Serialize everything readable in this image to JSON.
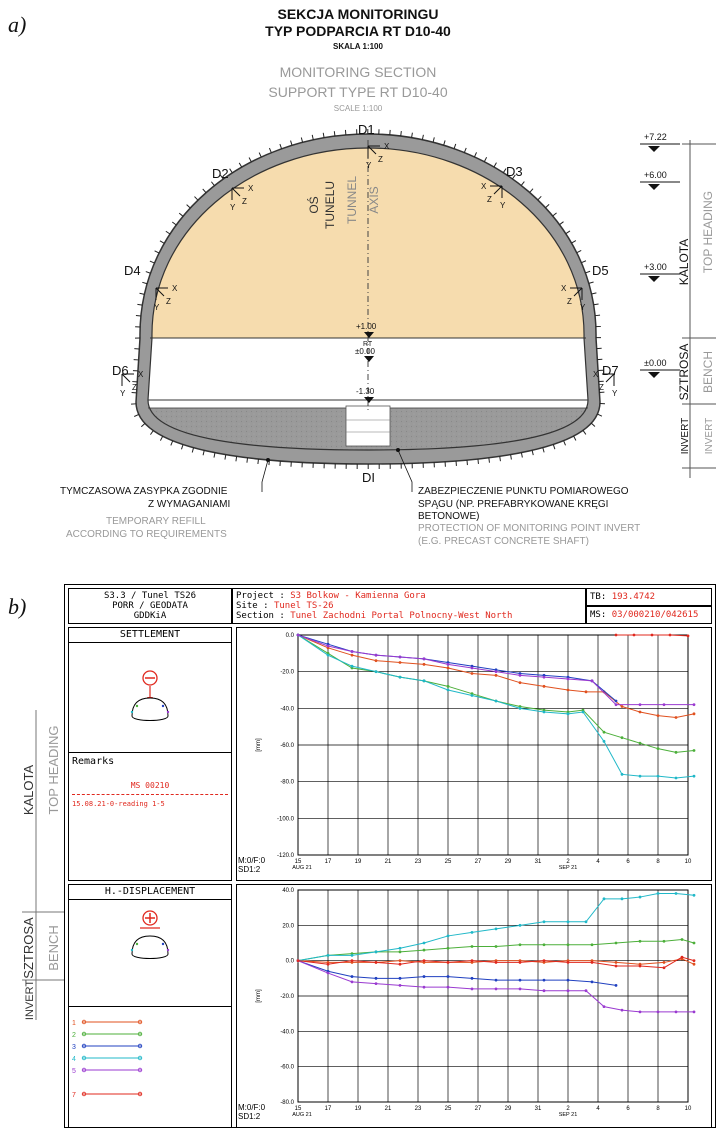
{
  "panel_a": {
    "label": "a)",
    "title_pl_1": "SEKCJA MONITORINGU",
    "title_pl_2": "TYP PODPARCIA RT D10-40",
    "scale_pl": "SKALA 1:100",
    "title_en_1": "MONITORING SECTION",
    "title_en_2": "SUPPORT  TYPE RT D10-40",
    "scale_en": "SCALE 1:100",
    "points": [
      "D1",
      "D2",
      "D3",
      "D4",
      "D5",
      "D6",
      "D7",
      "DI"
    ],
    "axis_pl_1": "OŚ",
    "axis_pl_2": "TUNELU",
    "axis_en_1": "TUNNEL",
    "axis_en_2": "AXIS",
    "levels": [
      "+7.22",
      "+6.00",
      "+3.00",
      "±0.00",
      "+1.00",
      "RT",
      "±0.00",
      "-1.30"
    ],
    "zones": {
      "kalota": "KALOTA",
      "top_heading": "TOP HEADING",
      "sztrosa": "SZTROSA",
      "bench": "BENCH",
      "invert": "INVERT",
      "invert_en": "INVERT"
    },
    "refill_pl_1": "TYMCZASOWA ZASYPKA ZGODNIE",
    "refill_pl_2": "Z WYMAGANIAMI",
    "refill_en_1": "TEMPORARY REFILL",
    "refill_en_2": "ACCORDING TO REQUIREMENTS",
    "protect_pl_1": "ZABEZPIECZENIE PUNKTU POMIAROWEGO",
    "protect_pl_2": "SPĄGU (NP. PREFABRYKOWANE KRĘGI",
    "protect_pl_3": "BETONOWE)",
    "protect_en_1": "PROTECTION OF MONITORING POINT INVERT",
    "protect_en_2": "(E.G. PRECAST CONCRETE SHAFT)",
    "coord_labels": {
      "x": "X",
      "y": "Y",
      "z": "Z"
    }
  },
  "panel_b": {
    "label": "b)",
    "header": {
      "left_1": "S3.3  / Tunel TS26",
      "left_2": "PORR / GEODATA",
      "left_3": "GDDKiA",
      "project_key": "Project   :",
      "project_val": "S3 Bolkow - Kamienna Gora",
      "site_key": "Site      :",
      "site_val": "Tunel TS-26",
      "section_key": "Section   :",
      "section_val": "Tunel Zachodni Portal Polnocny-West North",
      "tb_key": "TB:",
      "tb_val": "193.4742",
      "ms_key": "MS:",
      "ms_val": "03/000210/042615"
    },
    "settlement_title": "SETTLEMENT",
    "remarks_title": "Remarks",
    "remarks_ms": "MS 00210",
    "remarks_note": "15.08.21-0-reading 1-5",
    "hdisp_title": "H.-DISPLACEMENT",
    "mf_label": "M:0/F:0",
    "sd_label": "SD1:2",
    "legend": [
      {
        "num": "1",
        "color": "#e0501e"
      },
      {
        "num": "2",
        "color": "#4caf3a"
      },
      {
        "num": "3",
        "color": "#2040c0"
      },
      {
        "num": "4",
        "color": "#20b8c8"
      },
      {
        "num": "5",
        "color": "#9a3ad0"
      },
      {
        "num": "7",
        "color": "#e0281e"
      }
    ],
    "side_labels": {
      "kalota": "KALOTA",
      "top_heading": "TOP HEADING",
      "sztrosa": "SZTROSA",
      "bench": "BENCH",
      "invert": "INVERT"
    }
  },
  "chart_data": [
    {
      "type": "line",
      "ylabel": "[mm]",
      "ylim": [
        -120,
        0
      ],
      "yticks": [
        "0.0",
        "-20.0",
        "-40.0",
        "-60.0",
        "-80.0",
        "-100.0",
        "-120.0"
      ],
      "xticks": [
        "15",
        "17",
        "19",
        "21",
        "23",
        "25",
        "27",
        "29",
        "31",
        "2",
        "4",
        "6",
        "8",
        "10"
      ],
      "xmonths": [
        {
          "at": 0,
          "label": "AUG 21"
        },
        {
          "at": 9,
          "label": "SEP 21"
        }
      ],
      "grid": true,
      "series": [
        {
          "color": "#e0501e",
          "x": [
            0,
            1,
            1.8,
            2.6,
            3.4,
            4.2,
            5,
            5.8,
            6.6,
            7.4,
            8.2,
            9,
            9.6,
            10.2,
            10.8,
            11.4,
            12,
            12.6,
            13.2
          ],
          "y": [
            0,
            -7,
            -11,
            -14,
            -15,
            -16,
            -18,
            -21,
            -22,
            -26,
            -28,
            -30,
            -31,
            -31,
            -39,
            -42,
            -44,
            -45,
            -43
          ]
        },
        {
          "color": "#4caf3a",
          "x": [
            0,
            1,
            1.8,
            2.6,
            3.4,
            4.2,
            5,
            5.8,
            6.6,
            7.4,
            8.2,
            9,
            9.5,
            10.2,
            10.8,
            11.4,
            12,
            12.6,
            13.2
          ],
          "y": [
            0,
            -10,
            -18,
            -20,
            -23,
            -25,
            -28,
            -32,
            -36,
            -39,
            -41,
            -42,
            -41,
            -53,
            -56,
            -59,
            -62,
            -64,
            -63
          ]
        },
        {
          "color": "#2040c0",
          "x": [
            0,
            1,
            1.8,
            2.6,
            3.4,
            4.2,
            5,
            5.8,
            6.6,
            7.4,
            8.2,
            9,
            9.8,
            10.6
          ],
          "y": [
            0,
            -5,
            -9,
            -11,
            -12,
            -13,
            -15,
            -17,
            -19,
            -21,
            -22,
            -23,
            -25,
            -36
          ]
        },
        {
          "color": "#20b8c8",
          "x": [
            0,
            1,
            1.8,
            2.6,
            3.4,
            4.2,
            5,
            5.8,
            6.6,
            7.4,
            8.2,
            9,
            9.5,
            10.2,
            10.8,
            11.4,
            12,
            12.6,
            13.2
          ],
          "y": [
            0,
            -11,
            -17,
            -20,
            -23,
            -25,
            -30,
            -33,
            -36,
            -40,
            -42,
            -43,
            -42,
            -58,
            -76,
            -77,
            -77,
            -78,
            -77
          ]
        },
        {
          "color": "#9a3ad0",
          "x": [
            0,
            1,
            1.8,
            2.6,
            3.4,
            4.2,
            5,
            5.8,
            6.6,
            7.4,
            8.2,
            9,
            9.8,
            10.6,
            11.4,
            12.2,
            13.2
          ],
          "y": [
            0,
            -6,
            -9,
            -11,
            -12,
            -13,
            -16,
            -18,
            -20,
            -22,
            -23,
            -24,
            -25,
            -38,
            -38,
            -38,
            -38
          ]
        },
        {
          "color": "#e0281e",
          "x": [
            10.6,
            11.2,
            11.8,
            12.4,
            13.0
          ],
          "y": [
            0,
            0,
            0,
            0,
            -0.5
          ]
        }
      ]
    },
    {
      "type": "line",
      "ylabel": "[mm]",
      "ylim": [
        -80,
        40
      ],
      "yticks": [
        "40.0",
        "20.0",
        "0.0",
        "-20.0",
        "-40.0",
        "-60.0",
        "-80.0"
      ],
      "xticks": [
        "15",
        "17",
        "19",
        "21",
        "23",
        "25",
        "27",
        "29",
        "31",
        "2",
        "4",
        "6",
        "8",
        "10"
      ],
      "xmonths": [
        {
          "at": 0,
          "label": "AUG 21"
        },
        {
          "at": 9,
          "label": "SEP 21"
        }
      ],
      "grid": true,
      "series": [
        {
          "color": "#e0501e",
          "x": [
            0,
            1,
            1.8,
            2.6,
            3.4,
            4.2,
            5,
            5.8,
            6.6,
            7.4,
            8.2,
            9,
            9.8,
            10.6,
            11.4,
            12.2,
            12.8,
            13.2
          ],
          "y": [
            0,
            -1,
            -1,
            -1,
            0,
            -1,
            -1,
            -1,
            0,
            0,
            -1,
            0,
            0,
            -1,
            -2,
            -1,
            1,
            -2
          ]
        },
        {
          "color": "#4caf3a",
          "x": [
            0,
            1,
            1.8,
            2.6,
            3.4,
            4.2,
            5,
            5.8,
            6.6,
            7.4,
            8.2,
            9,
            9.8,
            10.6,
            11.4,
            12.2,
            12.8,
            13.2
          ],
          "y": [
            0,
            3,
            4,
            5,
            5,
            6,
            7,
            8,
            8,
            9,
            9,
            9,
            9,
            10,
            11,
            11,
            12,
            10
          ]
        },
        {
          "color": "#2040c0",
          "x": [
            0,
            1,
            1.8,
            2.6,
            3.4,
            4.2,
            5,
            5.8,
            6.6,
            7.4,
            8.2,
            9,
            9.8,
            10.6
          ],
          "y": [
            0,
            -6,
            -9,
            -10,
            -10,
            -9,
            -9,
            -10,
            -11,
            -11,
            -11,
            -11,
            -12,
            -14
          ]
        },
        {
          "color": "#20b8c8",
          "x": [
            0,
            1,
            1.8,
            2.6,
            3.4,
            4.2,
            5,
            5.8,
            6.6,
            7.4,
            8.2,
            9,
            9.6,
            10.2,
            10.8,
            11.4,
            12,
            12.6,
            13.2
          ],
          "y": [
            0,
            3,
            3,
            5,
            7,
            10,
            14,
            16,
            18,
            20,
            22,
            22,
            22,
            35,
            35,
            36,
            38,
            38,
            37
          ]
        },
        {
          "color": "#9a3ad0",
          "x": [
            0,
            1,
            1.8,
            2.6,
            3.4,
            4.2,
            5,
            5.8,
            6.6,
            7.4,
            8.2,
            9,
            9.6,
            10.2,
            10.8,
            11.4,
            12,
            12.6,
            13.2
          ],
          "y": [
            0,
            -7,
            -12,
            -13,
            -14,
            -15,
            -15,
            -16,
            -16,
            -16,
            -17,
            -17,
            -17,
            -26,
            -28,
            -29,
            -29,
            -29,
            -29
          ]
        },
        {
          "color": "#e0281e",
          "x": [
            0,
            1,
            1.8,
            2.6,
            3.4,
            4.2,
            5,
            5.8,
            6.6,
            7.4,
            8.2,
            9,
            9.8,
            10.6,
            11.4,
            12.2,
            12.8,
            13.2
          ],
          "y": [
            0,
            -2,
            0,
            -1,
            -2,
            0,
            -1,
            0,
            -1,
            -1,
            0,
            -1,
            -1,
            -3,
            -3,
            -4,
            2,
            0
          ]
        }
      ]
    }
  ]
}
